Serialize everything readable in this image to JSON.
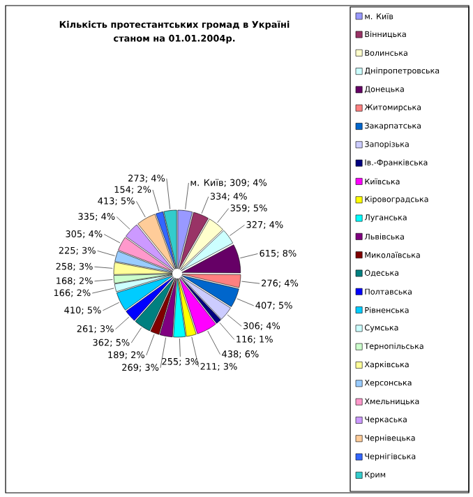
{
  "chart_data": {
    "type": "pie",
    "title": "Кількість протестантських громад в Україні",
    "subtitle": "станом на 01.01.2004р.",
    "categories": [
      "м. Київ",
      "Вінницька",
      "Волинська",
      "Дніпропетровська",
      "Донецька",
      "Житомирська",
      "Закарпатська",
      "Запорізька",
      "Ів.-Франківська",
      "Київська",
      "Кіровоградська",
      "Луганська",
      "Львівська",
      "Миколаївська",
      "Одеська",
      "Полтавська",
      "Рівненська",
      "Сумська",
      "Тернопільська",
      "Харківська",
      "Херсонська",
      "Хмельницька",
      "Черкаська",
      "Чернівецька",
      "Чернігівська",
      "Крим"
    ],
    "values": [
      309,
      334,
      359,
      327,
      615,
      276,
      407,
      306,
      116,
      438,
      211,
      255,
      269,
      189,
      362,
      261,
      410,
      166,
      168,
      258,
      225,
      305,
      335,
      413,
      154,
      273
    ],
    "value_labels": [
      "м. Київ; 309; 4%",
      "334; 4%",
      "359; 5%",
      "327; 4%",
      "615; 8%",
      "276; 4%",
      "407; 5%",
      "306; 4%",
      "116; 1%",
      "438; 6%",
      "211; 3%",
      "255; 3%",
      "269; 3%",
      "189; 2%",
      "362; 5%",
      "261; 3%",
      "410; 5%",
      "166; 2%",
      "168; 2%",
      "258; 3%",
      "225; 3%",
      "305; 4%",
      "335; 4%",
      "413; 5%",
      "154; 2%",
      "273; 4%"
    ],
    "colors": [
      "#9999ff",
      "#993366",
      "#ffffcc",
      "#ccffff",
      "#660066",
      "#ff8080",
      "#0066cc",
      "#ccccff",
      "#000080",
      "#ff00ff",
      "#ffff00",
      "#00ffff",
      "#800080",
      "#800000",
      "#008080",
      "#0000ff",
      "#00ccff",
      "#ccffff",
      "#ccffcc",
      "#ffff99",
      "#99ccff",
      "#ff99cc",
      "#cc99ff",
      "#ffcc99",
      "#3366ff",
      "#33cccc"
    ],
    "legend": "right"
  }
}
